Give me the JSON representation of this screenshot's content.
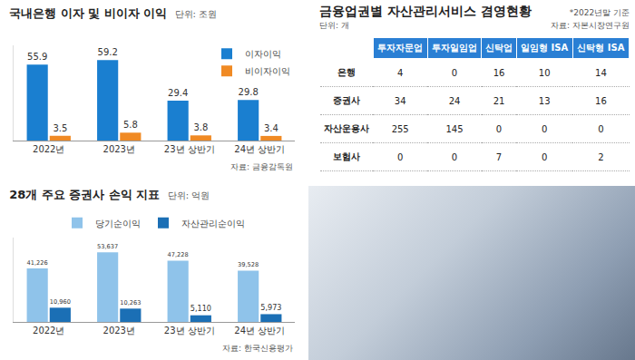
{
  "chart_data": [
    {
      "type": "bar",
      "title": "국내은행 이자 및 비이자 이익",
      "subtitle": "단위: 조원",
      "source": "자료: 금융감독원",
      "categories": [
        "2022년",
        "2023년",
        "23년 상반기",
        "24년 상반기"
      ],
      "series": [
        {
          "name": "이자이익",
          "color": "#1a7fd0",
          "values": [
            55.9,
            59.2,
            29.4,
            29.8
          ]
        },
        {
          "name": "비이자이익",
          "color": "#f08a24",
          "values": [
            3.5,
            5.8,
            3.8,
            3.4
          ]
        }
      ],
      "ylim": [
        0,
        70
      ],
      "grid": false,
      "legend": "top-right",
      "data_labels": true,
      "tick_labels": "x"
    },
    {
      "type": "bar",
      "title": "28개 주요 증권사 손익 지표",
      "subtitle": "단위: 억원",
      "source": "자료: 한국신용평가",
      "categories": [
        "2022년",
        "2023년",
        "23년 상반기",
        "24년 상반기"
      ],
      "series": [
        {
          "name": "당기순이익",
          "color": "#8fc3ea",
          "values": [
            41226,
            53637,
            47228,
            39528
          ],
          "value_labels": [
            "41,226",
            "53,637",
            "47,228",
            "39,528"
          ]
        },
        {
          "name": "자산관리순이익",
          "color": "#1b6fb5",
          "values": [
            10960,
            10263,
            5110,
            5973
          ],
          "value_labels": [
            "10,960",
            "10,263",
            "5,110",
            "5,973"
          ]
        }
      ],
      "ylim": [
        0,
        65000
      ],
      "grid": false,
      "legend": "top",
      "data_labels": true,
      "tick_labels": "x"
    }
  ],
  "table": {
    "title": "금융업권별 자산관리서비스 겸영현황",
    "note": "*2022년말 기준",
    "unit": "단위: 개",
    "source": "자료: 자본시장연구원",
    "header": [
      "투자자문업",
      "투자일임업",
      "신탁업",
      "일임형 ISA",
      "신탁형 ISA"
    ],
    "rows": [
      {
        "label": "은행",
        "values": [
          4,
          0,
          16,
          10,
          14
        ]
      },
      {
        "label": "증권사",
        "values": [
          34,
          24,
          21,
          13,
          16
        ]
      },
      {
        "label": "자산운용사",
        "values": [
          255,
          145,
          0,
          0,
          0
        ]
      },
      {
        "label": "보험사",
        "values": [
          0,
          0,
          7,
          0,
          2
        ]
      }
    ]
  }
}
